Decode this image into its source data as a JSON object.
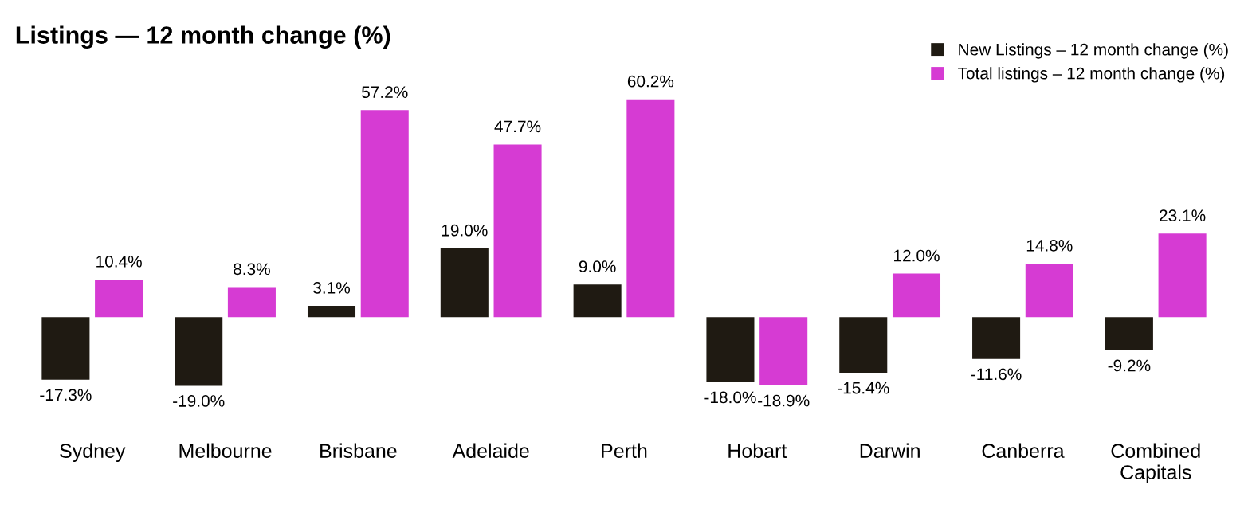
{
  "chart_data": {
    "type": "bar",
    "title": "Listings — 12 month change (%)",
    "categories": [
      "Sydney",
      "Melbourne",
      "Brisbane",
      "Adelaide",
      "Perth",
      "Hobart",
      "Darwin",
      "Canberra",
      "Combined\nCapitals"
    ],
    "series": [
      {
        "name": "New Listings – 12 month change (%)",
        "color": "#1f1a12",
        "values": [
          -17.3,
          -19.0,
          3.1,
          19.0,
          9.0,
          -18.0,
          -15.4,
          -11.6,
          -9.2
        ],
        "value_labels": [
          "-17.3%",
          "-19.0%",
          "3.1%",
          "19.0%",
          "9.0%",
          "-18.0%",
          "-15.4%",
          "-11.6%",
          "-9.2%"
        ]
      },
      {
        "name": "Total listings – 12 month change (%)",
        "color": "#d63bd3",
        "values": [
          10.4,
          8.3,
          57.2,
          47.7,
          60.2,
          -18.9,
          12.0,
          14.8,
          23.1
        ],
        "value_labels": [
          "10.4%",
          "8.3%",
          "57.2%",
          "47.7%",
          "60.2%",
          "-18.9%",
          "12.0%",
          "14.8%",
          "23.1%"
        ]
      }
    ],
    "legend": "top right",
    "grid": false,
    "tick_labels": "x"
  }
}
